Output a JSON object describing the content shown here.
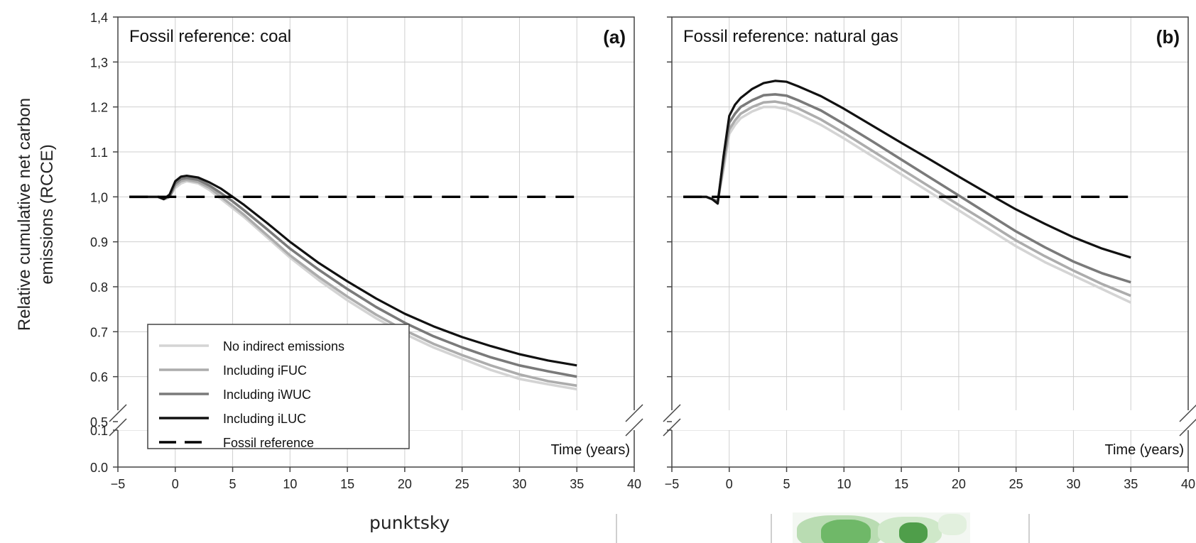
{
  "chart_data": [
    {
      "type": "line",
      "panel_tag": "(a)",
      "title": "Fossil reference: coal",
      "xlabel": "Time (years)",
      "ylabel": "Relative cumulative net carbon emissions (RCCE)",
      "xlim": [
        -5,
        40
      ],
      "ylim": [
        0.5,
        1.4
      ],
      "ylim_lower": [
        0.0,
        0.1
      ],
      "x_ticks": [
        "−5",
        "0",
        "5",
        "10",
        "15",
        "20",
        "25",
        "30",
        "35",
        "40"
      ],
      "y_ticks": [
        "1,4",
        "1,3",
        "1.2",
        "1.1",
        "1,0",
        "0.9",
        "0.8",
        "0.7",
        "0.6",
        "0.5"
      ],
      "y_ticks_lower": [
        "0.1",
        "0.0"
      ],
      "grid": true,
      "legend_position": "bottom-left",
      "x": [
        -4,
        -3,
        -2,
        -1.5,
        -1,
        -0.5,
        0,
        0.5,
        1,
        2,
        3,
        4,
        5,
        6,
        8,
        10,
        12.5,
        15,
        17.5,
        20,
        22.5,
        25,
        27.5,
        30,
        32.5,
        35
      ],
      "series": [
        {
          "name": "No indirect emissions",
          "color": "#d4d4d4",
          "dash": "solid",
          "values": [
            1.0,
            1.0,
            1.0,
            1.0,
            0.995,
            1.0,
            1.02,
            1.03,
            1.035,
            1.03,
            1.015,
            0.995,
            0.975,
            0.955,
            0.91,
            0.865,
            0.815,
            0.77,
            0.73,
            0.695,
            0.665,
            0.64,
            0.615,
            0.595,
            0.583,
            0.572
          ]
        },
        {
          "name": "Including iFUC",
          "color": "#acacac",
          "dash": "solid",
          "values": [
            1.0,
            1.0,
            1.0,
            1.0,
            0.995,
            1.0,
            1.025,
            1.035,
            1.038,
            1.033,
            1.02,
            1.0,
            0.98,
            0.96,
            0.915,
            0.87,
            0.822,
            0.778,
            0.738,
            0.703,
            0.673,
            0.648,
            0.625,
            0.605,
            0.59,
            0.58
          ]
        },
        {
          "name": "Including iWUC",
          "color": "#7a7a7a",
          "dash": "solid",
          "values": [
            1.0,
            1.0,
            1.0,
            1.0,
            0.995,
            1.0,
            1.03,
            1.04,
            1.042,
            1.038,
            1.025,
            1.008,
            0.99,
            0.97,
            0.928,
            0.885,
            0.838,
            0.795,
            0.755,
            0.72,
            0.69,
            0.665,
            0.643,
            0.625,
            0.612,
            0.6
          ]
        },
        {
          "name": "Including iLUC",
          "color": "#111111",
          "dash": "solid",
          "values": [
            1.0,
            1.0,
            1.0,
            1.0,
            0.995,
            1.005,
            1.035,
            1.045,
            1.047,
            1.043,
            1.032,
            1.018,
            1.0,
            0.982,
            0.942,
            0.9,
            0.853,
            0.812,
            0.774,
            0.74,
            0.712,
            0.688,
            0.668,
            0.65,
            0.636,
            0.625
          ]
        },
        {
          "name": "Fossil reference",
          "color": "#000000",
          "dash": "dashed",
          "values": [
            1.0,
            1.0,
            1.0,
            1.0,
            1.0,
            1.0,
            1.0,
            1.0,
            1.0,
            1.0,
            1.0,
            1.0,
            1.0,
            1.0,
            1.0,
            1.0,
            1.0,
            1.0,
            1.0,
            1.0,
            1.0,
            1.0,
            1.0,
            1.0,
            1.0,
            1.0
          ]
        }
      ]
    },
    {
      "type": "line",
      "panel_tag": "(b)",
      "title": "Fossil reference: natural gas",
      "xlabel": "Time (years)",
      "xlim": [
        -5,
        40
      ],
      "ylim": [
        0.5,
        1.4
      ],
      "ylim_lower": [
        0.0,
        0.1
      ],
      "x_ticks": [
        "−5",
        "0",
        "5",
        "10",
        "15",
        "20",
        "25",
        "30",
        "35",
        "40"
      ],
      "grid": true,
      "x": [
        -4,
        -3,
        -2,
        -1.5,
        -1,
        -0.5,
        0,
        0.5,
        1,
        2,
        3,
        4,
        5,
        6,
        8,
        10,
        12.5,
        15,
        17.5,
        20,
        22.5,
        25,
        27.5,
        30,
        32.5,
        35
      ],
      "series": [
        {
          "name": "No indirect emissions",
          "color": "#d4d4d4",
          "dash": "solid",
          "values": [
            1.0,
            1.0,
            1.0,
            0.995,
            0.99,
            1.06,
            1.14,
            1.16,
            1.175,
            1.19,
            1.2,
            1.2,
            1.195,
            1.185,
            1.16,
            1.13,
            1.09,
            1.05,
            1.01,
            0.97,
            0.93,
            0.89,
            0.855,
            0.825,
            0.795,
            0.765
          ]
        },
        {
          "name": "Including iFUC",
          "color": "#acacac",
          "dash": "solid",
          "values": [
            1.0,
            1.0,
            1.0,
            0.995,
            0.99,
            1.07,
            1.15,
            1.17,
            1.185,
            1.2,
            1.21,
            1.212,
            1.207,
            1.197,
            1.172,
            1.142,
            1.102,
            1.062,
            1.022,
            0.982,
            0.943,
            0.903,
            0.868,
            0.836,
            0.806,
            0.78
          ]
        },
        {
          "name": "Including iWUC",
          "color": "#7a7a7a",
          "dash": "solid",
          "values": [
            1.0,
            1.0,
            1.0,
            0.995,
            0.99,
            1.08,
            1.165,
            1.185,
            1.2,
            1.215,
            1.226,
            1.228,
            1.225,
            1.215,
            1.192,
            1.162,
            1.123,
            1.083,
            1.043,
            1.003,
            0.963,
            0.923,
            0.888,
            0.856,
            0.83,
            0.81
          ]
        },
        {
          "name": "Including iLUC",
          "color": "#111111",
          "dash": "solid",
          "values": [
            1.0,
            1.0,
            1.0,
            0.995,
            0.985,
            1.09,
            1.18,
            1.205,
            1.22,
            1.24,
            1.253,
            1.258,
            1.256,
            1.246,
            1.224,
            1.196,
            1.158,
            1.12,
            1.083,
            1.045,
            1.008,
            0.972,
            0.94,
            0.91,
            0.885,
            0.865
          ]
        },
        {
          "name": "Fossil reference",
          "color": "#000000",
          "dash": "dashed",
          "values": [
            1.0,
            1.0,
            1.0,
            1.0,
            1.0,
            1.0,
            1.0,
            1.0,
            1.0,
            1.0,
            1.0,
            1.0,
            1.0,
            1.0,
            1.0,
            1.0,
            1.0,
            1.0,
            1.0,
            1.0,
            1.0,
            1.0,
            1.0,
            1.0,
            1.0,
            1.0
          ]
        }
      ]
    }
  ],
  "footer": {
    "caption": "punktsky"
  }
}
